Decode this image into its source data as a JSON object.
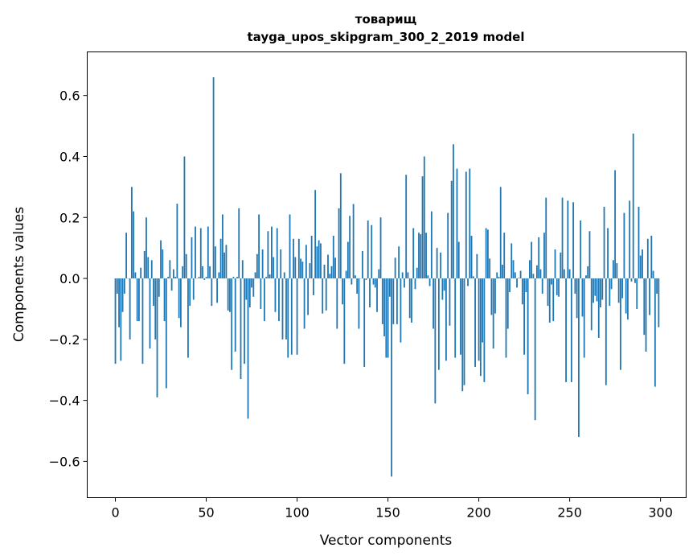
{
  "chart_data": {
    "type": "bar",
    "title": "товарищ",
    "subtitle": "tayga_upos_skipgram_300_2_2019 model",
    "xlabel": "Vector components",
    "ylabel": "Components values",
    "xlim": [
      -15.5,
      314.1
    ],
    "ylim": [
      -0.719,
      0.743
    ],
    "xticks": [
      0,
      50,
      100,
      150,
      200,
      250,
      300
    ],
    "xtick_labels": [
      "0",
      "50",
      "100",
      "150",
      "200",
      "250",
      "300"
    ],
    "yticks": [
      -0.6,
      -0.4,
      -0.2,
      0.0,
      0.2,
      0.4,
      0.6
    ],
    "ytick_labels": [
      "−0.6",
      "−0.4",
      "−0.2",
      "0.0",
      "0.2",
      "0.4",
      "0.6"
    ],
    "grid": false,
    "bar_color": "#1f77b4",
    "values": [
      -0.28,
      -0.05,
      -0.16,
      -0.27,
      -0.11,
      -0.05,
      0.15,
      0.0,
      -0.2,
      0.3,
      0.22,
      0.02,
      -0.14,
      -0.14,
      0.035,
      -0.28,
      0.09,
      0.2,
      0.07,
      -0.23,
      0.06,
      -0.09,
      -0.2,
      -0.39,
      -0.06,
      0.125,
      0.095,
      -0.14,
      -0.36,
      0.005,
      0.06,
      -0.04,
      0.03,
      0.005,
      0.245,
      -0.13,
      -0.16,
      0.04,
      0.4,
      0.08,
      -0.26,
      -0.09,
      0.135,
      -0.07,
      0.17,
      0.0,
      0.005,
      0.165,
      0.04,
      -0.005,
      0.005,
      0.17,
      0.04,
      -0.09,
      0.66,
      0.105,
      -0.08,
      0.02,
      0.13,
      0.21,
      0.085,
      0.11,
      -0.105,
      -0.11,
      -0.3,
      0.005,
      -0.24,
      0.005,
      0.23,
      -0.33,
      0.06,
      -0.28,
      -0.07,
      -0.46,
      -0.095,
      -0.03,
      -0.06,
      0.02,
      0.08,
      0.21,
      -0.1,
      0.095,
      -0.14,
      0.005,
      0.155,
      0.013,
      0.17,
      0.07,
      -0.11,
      0.165,
      -0.14,
      0.095,
      -0.2,
      0.02,
      -0.2,
      -0.26,
      0.21,
      -0.25,
      0.13,
      0.07,
      -0.25,
      0.13,
      0.065,
      0.055,
      -0.165,
      0.11,
      -0.12,
      0.05,
      0.14,
      -0.055,
      0.29,
      0.105,
      0.125,
      0.115,
      -0.115,
      0.045,
      -0.105,
      0.078,
      0.015,
      0.04,
      0.14,
      0.068,
      -0.165,
      0.23,
      0.345,
      -0.085,
      -0.28,
      0.025,
      0.12,
      0.205,
      -0.02,
      0.244,
      0.01,
      -0.05,
      -0.165,
      0.0,
      0.09,
      -0.29,
      -0.005,
      0.19,
      -0.095,
      0.175,
      -0.02,
      -0.03,
      -0.11,
      0.03,
      0.2,
      -0.15,
      -0.19,
      -0.26,
      -0.26,
      -0.06,
      -0.65,
      -0.15,
      0.068,
      -0.15,
      0.105,
      -0.21,
      0.02,
      -0.03,
      0.34,
      0.02,
      -0.13,
      -0.145,
      0.165,
      -0.035,
      0.035,
      0.15,
      0.145,
      0.335,
      0.4,
      0.15,
      0.01,
      -0.025,
      0.22,
      -0.165,
      -0.41,
      0.1,
      -0.3,
      0.085,
      -0.07,
      -0.04,
      -0.27,
      0.215,
      -0.155,
      0.32,
      0.44,
      -0.26,
      0.36,
      0.12,
      -0.25,
      -0.37,
      -0.35,
      0.35,
      -0.025,
      0.36,
      0.14,
      0.007,
      -0.29,
      0.08,
      -0.27,
      -0.32,
      -0.21,
      -0.34,
      0.165,
      0.16,
      0.065,
      -0.12,
      -0.23,
      -0.115,
      0.02,
      0.005,
      0.3,
      0.045,
      0.15,
      -0.26,
      -0.165,
      -0.045,
      0.115,
      0.06,
      0.02,
      -0.03,
      0.002,
      0.025,
      -0.085,
      -0.25,
      -0.045,
      -0.38,
      0.06,
      0.12,
      0.015,
      -0.465,
      0.043,
      0.135,
      0.03,
      -0.05,
      0.15,
      0.265,
      -0.09,
      -0.145,
      -0.02,
      -0.14,
      0.095,
      -0.055,
      -0.06,
      0.085,
      0.265,
      0.03,
      -0.34,
      0.255,
      0.03,
      -0.34,
      0.25,
      -0.05,
      -0.13,
      -0.52,
      0.19,
      -0.125,
      -0.26,
      0.01,
      0.04,
      0.155,
      -0.17,
      -0.08,
      -0.057,
      -0.075,
      -0.195,
      -0.095,
      -0.07,
      0.235,
      -0.35,
      0.165,
      -0.09,
      -0.035,
      0.06,
      0.355,
      0.05,
      -0.08,
      -0.3,
      -0.065,
      0.215,
      -0.115,
      -0.135,
      0.255,
      -0.01,
      0.475,
      -0.015,
      -0.1,
      0.235,
      0.075,
      0.095,
      -0.185,
      -0.24,
      0.13,
      -0.12,
      0.14,
      0.025,
      -0.355,
      -0.05,
      -0.16
    ]
  }
}
